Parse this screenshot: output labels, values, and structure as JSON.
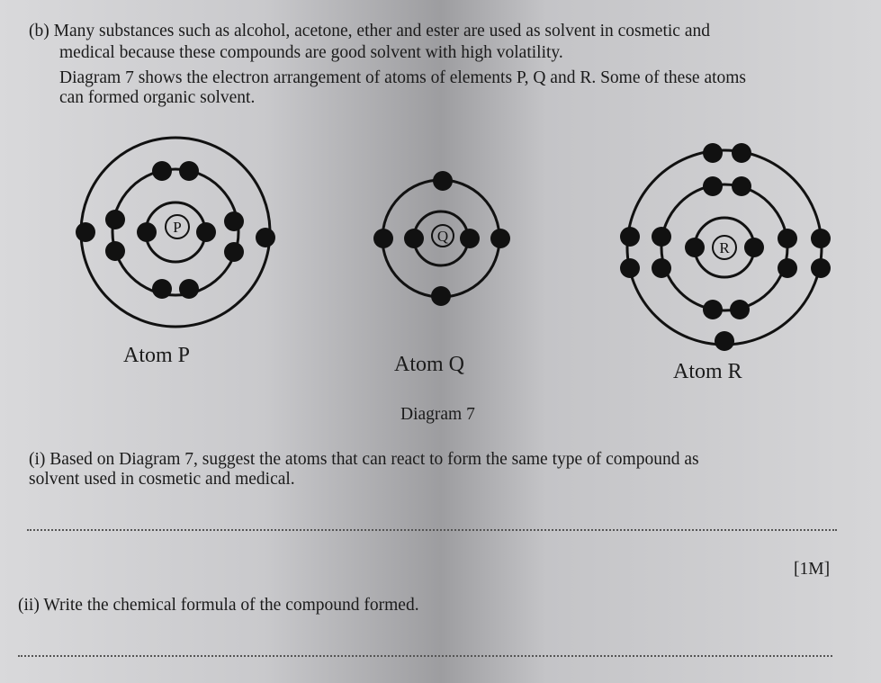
{
  "intro": {
    "lines": [
      "(b) Many substances such as alcohol, acetone, ether and ester are used as solvent in cosmetic and",
      "medical because these compounds are good solvent with high volatility.",
      "Diagram 7 shows the electron arrangement of atoms of elements P, Q and R. Some of these atoms",
      "can formed organic solvent."
    ]
  },
  "diagram": {
    "atoms": [
      {
        "symbol": "P",
        "label": "Atom P"
      },
      {
        "symbol": "Q",
        "label": "Atom Q"
      },
      {
        "symbol": "R",
        "label": "Atom R"
      }
    ],
    "caption": "Diagram 7"
  },
  "questions": [
    {
      "lines": [
        "(i) Based on Diagram 7, suggest the atoms that can react to form the same type of compound as",
        "solvent used in cosmetic and medical."
      ],
      "marks": "[1M]"
    },
    {
      "lines": [
        "(ii) Write the chemical formula of the compound formed."
      ]
    }
  ]
}
